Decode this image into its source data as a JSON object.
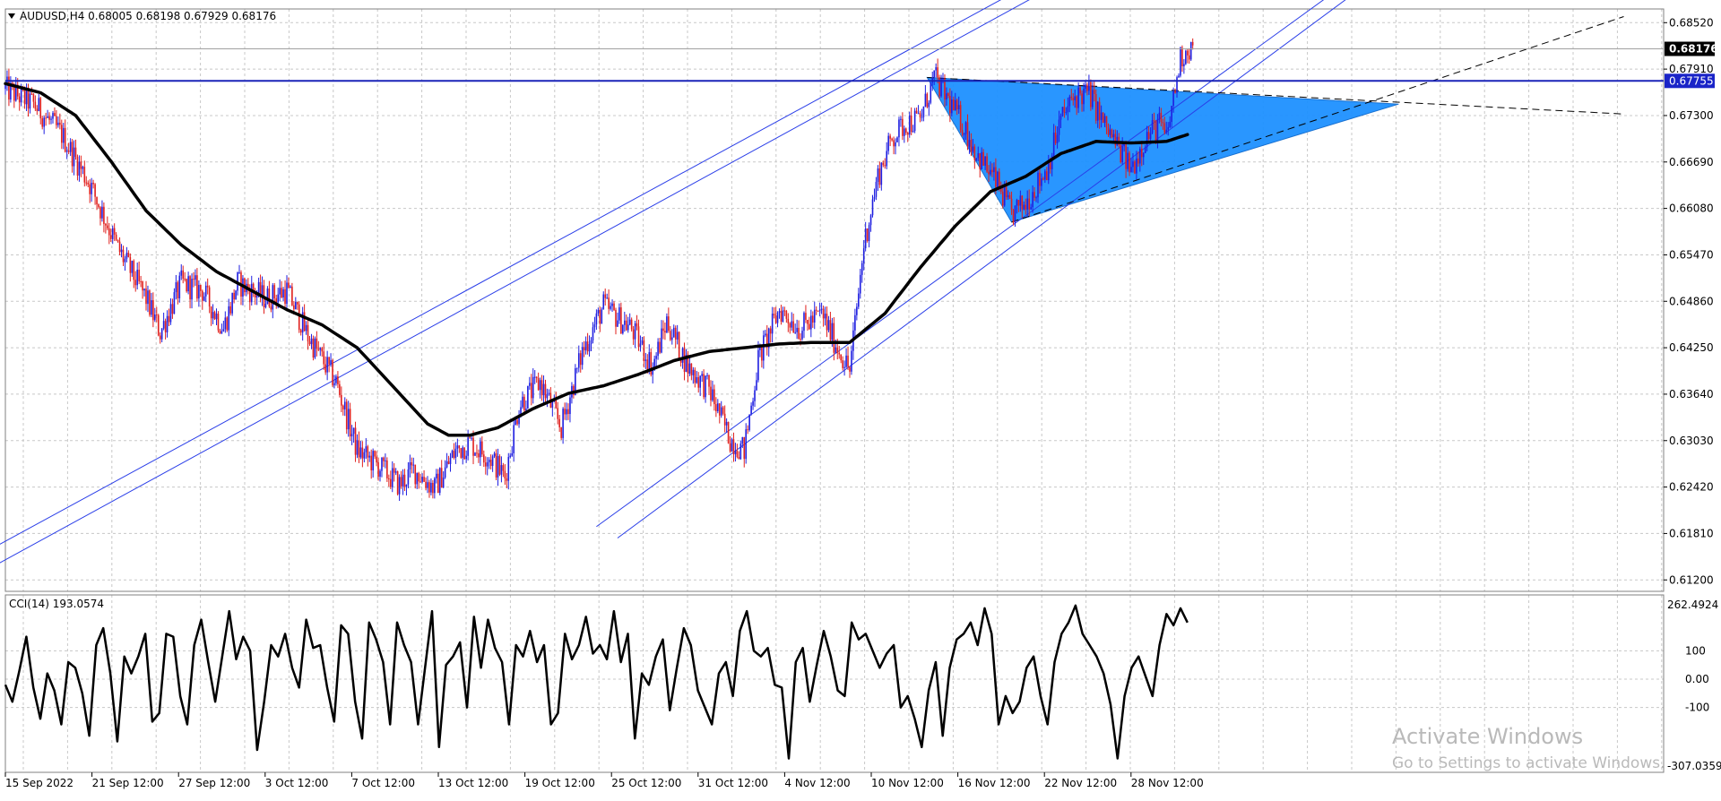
{
  "colors": {
    "background": "#ffffff",
    "grid": "#c8c8c8",
    "bull": "#1f1fe0",
    "bear": "#e0201e",
    "ma": "#000000",
    "channel": "#2a3ee8",
    "level": "#1a24b8",
    "triangle_fill": "#1e90ff",
    "price_tag_bg": "#000000",
    "level_tag_bg": "#1a24c8"
  },
  "symbol_header": "AUDUSD,H4  0.68005 0.68198 0.67929 0.68176",
  "price_axis_labels": [
    "0.68520",
    "0.67910",
    "0.67300",
    "0.66690",
    "0.66080",
    "0.65470",
    "0.64860",
    "0.64250",
    "0.63640",
    "0.63030",
    "0.62420",
    "0.61810",
    "0.61200"
  ],
  "current_price_tag": "0.68176",
  "level_price_tag": "0.67755",
  "indicator": {
    "header": "CCI(14) 193.0574",
    "axis_labels": [
      "262.4924",
      "100",
      "0.00",
      "-100",
      "-307.0359"
    ]
  },
  "time_axis_labels": [
    "15 Sep 2022",
    "21 Sep 12:00",
    "27 Sep 12:00",
    "3 Oct 12:00",
    "7 Oct 12:00",
    "13 Oct 12:00",
    "19 Oct 12:00",
    "25 Oct 12:00",
    "31 Oct 12:00",
    "4 Nov 12:00",
    "10 Nov 12:00",
    "16 Nov 12:00",
    "22 Nov 12:00",
    "28 Nov 12:00"
  ],
  "watermark": {
    "title": "Activate Windows",
    "subtitle": "Go to Settings to activate Windows."
  },
  "chart_data": {
    "type": "candlestick",
    "symbol": "AUDUSD",
    "timeframe": "H4",
    "ohlc_last": {
      "open": 0.68005,
      "high": 0.68198,
      "low": 0.67929,
      "close": 0.68176
    },
    "ylim": [
      0.6105,
      0.687
    ],
    "horizontal_level": 0.67755,
    "price_path": [
      [
        0,
        0.6765
      ],
      [
        4,
        0.6745
      ],
      [
        8,
        0.6705
      ],
      [
        12,
        0.664
      ],
      [
        16,
        0.6555
      ],
      [
        20,
        0.649
      ],
      [
        22,
        0.6445
      ],
      [
        25,
        0.651
      ],
      [
        28,
        0.65
      ],
      [
        31,
        0.645
      ],
      [
        33,
        0.651
      ],
      [
        37,
        0.649
      ],
      [
        40,
        0.65
      ],
      [
        43,
        0.644
      ],
      [
        47,
        0.638
      ],
      [
        50,
        0.629
      ],
      [
        53,
        0.627
      ],
      [
        56,
        0.6245
      ],
      [
        58,
        0.6265
      ],
      [
        61,
        0.624
      ],
      [
        64,
        0.629
      ],
      [
        66,
        0.63
      ],
      [
        69,
        0.628
      ],
      [
        71,
        0.6255
      ],
      [
        73,
        0.635
      ],
      [
        76,
        0.638
      ],
      [
        79,
        0.632
      ],
      [
        82,
        0.642
      ],
      [
        85,
        0.648
      ],
      [
        89,
        0.645
      ],
      [
        92,
        0.64
      ],
      [
        94,
        0.646
      ],
      [
        97,
        0.64
      ],
      [
        100,
        0.637
      ],
      [
        103,
        0.6305
      ],
      [
        105,
        0.629
      ],
      [
        107,
        0.641
      ],
      [
        110,
        0.6475
      ],
      [
        113,
        0.645
      ],
      [
        116,
        0.647
      ],
      [
        118,
        0.643
      ],
      [
        120,
        0.6395
      ],
      [
        122,
        0.656
      ],
      [
        124,
        0.665
      ],
      [
        126,
        0.67
      ],
      [
        128,
        0.672
      ],
      [
        130,
        0.6725
      ],
      [
        132,
        0.678
      ],
      [
        134,
        0.675
      ],
      [
        136,
        0.672
      ],
      [
        138,
        0.668
      ],
      [
        141,
        0.664
      ],
      [
        143,
        0.66
      ],
      [
        145,
        0.6615
      ],
      [
        148,
        0.666
      ],
      [
        150,
        0.6725
      ],
      [
        152,
        0.6755
      ],
      [
        154,
        0.676
      ],
      [
        156,
        0.672
      ],
      [
        158,
        0.669
      ],
      [
        160,
        0.666
      ],
      [
        162,
        0.67
      ],
      [
        164,
        0.672
      ],
      [
        165,
        0.67
      ],
      [
        167,
        0.6805
      ],
      [
        168,
        0.6818
      ]
    ],
    "moving_average_path": [
      [
        0,
        0.6772
      ],
      [
        5,
        0.676
      ],
      [
        10,
        0.673
      ],
      [
        15,
        0.667
      ],
      [
        20,
        0.6605
      ],
      [
        25,
        0.656
      ],
      [
        30,
        0.6525
      ],
      [
        35,
        0.65
      ],
      [
        40,
        0.6475
      ],
      [
        45,
        0.6455
      ],
      [
        50,
        0.6425
      ],
      [
        55,
        0.6375
      ],
      [
        60,
        0.6325
      ],
      [
        63,
        0.631
      ],
      [
        66,
        0.631
      ],
      [
        70,
        0.632
      ],
      [
        75,
        0.6345
      ],
      [
        80,
        0.6365
      ],
      [
        85,
        0.6375
      ],
      [
        90,
        0.639
      ],
      [
        95,
        0.6408
      ],
      [
        100,
        0.642
      ],
      [
        105,
        0.6425
      ],
      [
        110,
        0.643
      ],
      [
        115,
        0.6432
      ],
      [
        120,
        0.6432
      ],
      [
        125,
        0.647
      ],
      [
        130,
        0.653
      ],
      [
        135,
        0.6585
      ],
      [
        140,
        0.663
      ],
      [
        145,
        0.665
      ],
      [
        150,
        0.668
      ],
      [
        155,
        0.6696
      ],
      [
        160,
        0.6694
      ],
      [
        165,
        0.6696
      ],
      [
        168,
        0.6705
      ]
    ],
    "channel_lines": [
      {
        "from": [
          -30,
          0.602
        ],
        "to": [
          150,
          0.6925
        ]
      },
      {
        "from": [
          -25,
          0.602
        ],
        "to": [
          154,
          0.6925
        ]
      },
      {
        "from": [
          84,
          0.619
        ],
        "to": [
          193,
          0.692
        ]
      },
      {
        "from": [
          87,
          0.6175
        ],
        "to": [
          196,
          0.692
        ]
      }
    ],
    "triangle": {
      "points": [
        [
          131,
          0.678
        ],
        [
          143,
          0.659
        ],
        [
          198,
          0.6745
        ]
      ]
    },
    "dashed_lines": [
      {
        "from": [
          131,
          0.678
        ],
        "to": [
          230,
          0.6732
        ]
      },
      {
        "from": [
          143,
          0.659
        ],
        "to": [
          230,
          0.686
        ]
      }
    ],
    "cci": {
      "period": 14,
      "last_value": 193.0574,
      "ylim": [
        -307.0359,
        262.4924
      ],
      "values": [
        -20,
        -80,
        30,
        150,
        -30,
        -140,
        20,
        -40,
        -160,
        60,
        40,
        -50,
        -200,
        120,
        180,
        20,
        -220,
        80,
        20,
        80,
        160,
        -150,
        -120,
        160,
        150,
        -60,
        -160,
        120,
        210,
        60,
        -80,
        80,
        240,
        70,
        150,
        100,
        -250,
        -80,
        120,
        80,
        160,
        40,
        -30,
        210,
        110,
        120,
        -30,
        -150,
        190,
        160,
        -80,
        -210,
        200,
        140,
        60,
        -160,
        200,
        120,
        60,
        -160,
        40,
        240,
        -240,
        50,
        80,
        130,
        -100,
        220,
        40,
        210,
        110,
        60,
        -160,
        120,
        80,
        170,
        60,
        120,
        -160,
        -120,
        160,
        70,
        120,
        220,
        90,
        120,
        70,
        240,
        60,
        160,
        -210,
        20,
        -20,
        80,
        140,
        -110,
        40,
        180,
        120,
        -40,
        -100,
        -160,
        20,
        60,
        -60,
        170,
        240,
        100,
        80,
        110,
        -20,
        -30,
        -280,
        60,
        110,
        -80,
        50,
        170,
        80,
        -40,
        -60,
        200,
        140,
        160,
        100,
        40,
        90,
        120,
        -100,
        -60,
        -140,
        -240,
        -40,
        60,
        -200,
        40,
        140,
        160,
        200,
        120,
        250,
        160,
        -160,
        -60,
        -120,
        -80,
        40,
        80,
        -60,
        -160,
        60,
        160,
        200,
        260,
        160,
        120,
        80,
        20,
        -90,
        -280,
        -60,
        40,
        80,
        10,
        -60,
        120,
        230,
        190,
        250,
        200
      ]
    }
  }
}
